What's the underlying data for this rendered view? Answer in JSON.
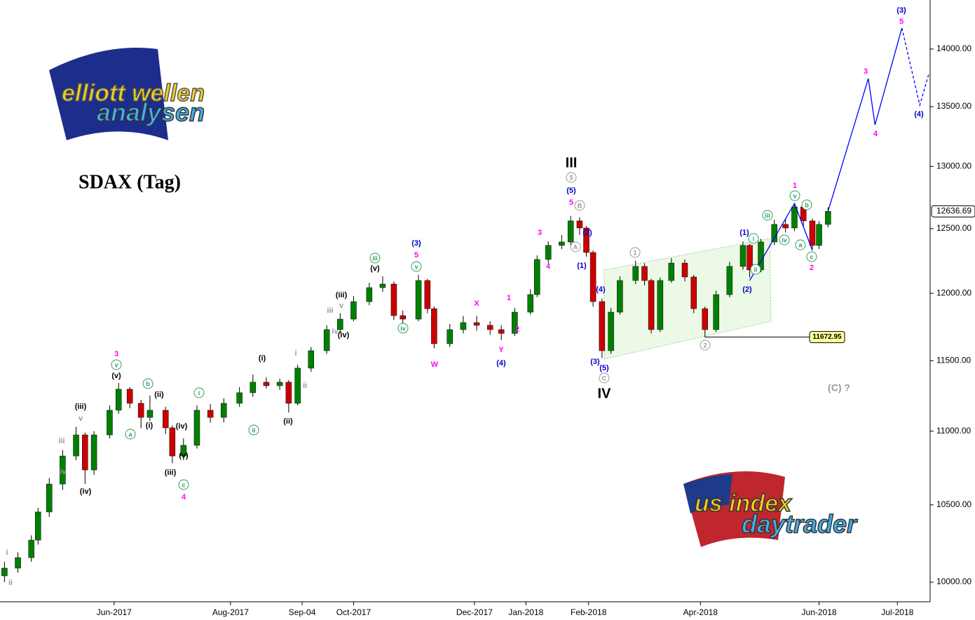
{
  "chart_data": {
    "type": "candlestick",
    "title": "SDAX (Tag)",
    "log_scale": true,
    "up_color": "#008000",
    "down_color": "#cc0000",
    "xlim": [
      0,
      415
    ],
    "ylim": [
      9877,
      14440
    ],
    "xticks": [
      {
        "value": 51,
        "label": "Jun-2017"
      },
      {
        "value": 103,
        "label": "Aug-2017"
      },
      {
        "value": 135,
        "label": "Sep-04"
      },
      {
        "value": 158,
        "label": "Oct-2017"
      },
      {
        "value": 212,
        "label": "Dec-2017"
      },
      {
        "value": 235,
        "label": "Jan-2018"
      },
      {
        "value": 263,
        "label": "Feb-2018"
      },
      {
        "value": 313,
        "label": "Apr-2018"
      },
      {
        "value": 366,
        "label": "Jun-2018"
      },
      {
        "value": 401,
        "label": "Jul-2018"
      }
    ],
    "yticks": [
      {
        "value": 10000,
        "label": "10000.00"
      },
      {
        "value": 10500,
        "label": "10500.00"
      },
      {
        "value": 11000,
        "label": "11000.00"
      },
      {
        "value": 11500,
        "label": "11500.00"
      },
      {
        "value": 12000,
        "label": "12000.00"
      },
      {
        "value": 12500,
        "label": "12500.00"
      },
      {
        "value": 13000,
        "label": "13000.00"
      },
      {
        "value": 13500,
        "label": "13500.00"
      },
      {
        "value": 14000,
        "label": "14000.00"
      }
    ],
    "x": [
      2,
      8,
      14,
      17,
      22,
      28,
      34,
      38,
      42,
      49,
      53,
      58,
      63,
      67,
      74,
      77,
      82,
      88,
      94,
      100,
      107,
      113,
      119,
      125,
      129,
      133,
      139,
      146,
      152,
      158,
      165,
      171,
      176,
      180,
      187,
      191,
      194,
      201,
      207,
      213,
      219,
      224,
      230,
      237,
      240,
      245,
      251,
      255,
      259,
      262,
      265,
      269,
      273,
      277,
      284,
      288,
      291,
      295,
      300,
      306,
      310,
      315,
      320,
      326,
      332,
      335,
      340,
      346,
      351,
      355,
      359,
      363,
      366,
      370
    ],
    "open": [
      10040,
      10089,
      10156,
      10269,
      10453,
      10639,
      10829,
      10974,
      10734,
      10974,
      11146,
      11295,
      11195,
      11096,
      11146,
      11023,
      10829,
      10902,
      11146,
      11096,
      11195,
      11270,
      11345,
      11320,
      11345,
      11195,
      11446,
      11573,
      11728,
      11806,
      11937,
      12043,
      12070,
      11832,
      11806,
      12097,
      11884,
      11624,
      11728,
      11780,
      11760,
      11728,
      11700,
      11858,
      11990,
      12259,
      12368,
      12395,
      12561,
      12505,
      12313,
      11937,
      11573,
      11858,
      12097,
      12205,
      12097,
      11728,
      12097,
      12231,
      12124,
      11884,
      11728,
      11990,
      12205,
      12368,
      12178,
      12395,
      12533,
      12505,
      12672,
      12561,
      12368,
      12533
    ],
    "high": [
      10130,
      10190,
      10300,
      10480,
      10680,
      10870,
      11030,
      10990,
      11000,
      11180,
      11340,
      11310,
      11220,
      11250,
      11170,
      11040,
      10950,
      11180,
      11190,
      11230,
      11310,
      11400,
      11380,
      11370,
      11360,
      11470,
      11600,
      11760,
      11850,
      11980,
      12080,
      12130,
      12090,
      11870,
      12140,
      12110,
      11900,
      11770,
      11830,
      11830,
      11790,
      11760,
      11890,
      12030,
      12290,
      12400,
      12450,
      12600,
      12590,
      12520,
      12330,
      11960,
      11890,
      12130,
      12250,
      12230,
      12110,
      12120,
      12270,
      12260,
      12140,
      11900,
      12020,
      12240,
      12400,
      12380,
      12420,
      12570,
      12580,
      12700,
      12690,
      12580,
      12560,
      12670
    ],
    "low": [
      10000,
      10060,
      10130,
      10240,
      10420,
      10600,
      10800,
      10640,
      10700,
      10950,
      11120,
      11160,
      11020,
      11070,
      10980,
      10780,
      10800,
      10880,
      11060,
      11060,
      11170,
      11240,
      11300,
      11290,
      11130,
      11180,
      11420,
      11550,
      11700,
      11790,
      11910,
      12010,
      11800,
      11770,
      11790,
      11850,
      11590,
      11600,
      11700,
      11720,
      11690,
      11650,
      11680,
      11840,
      11970,
      12230,
      12340,
      12370,
      12450,
      12280,
      11900,
      11520,
      11550,
      11840,
      12070,
      12060,
      11700,
      11710,
      12080,
      12090,
      11850,
      11672.95,
      11710,
      11970,
      12180,
      12120,
      12160,
      12370,
      12470,
      12480,
      12520,
      12330,
      12340,
      12510
    ],
    "close": [
      10089,
      10156,
      10269,
      10453,
      10639,
      10829,
      10974,
      10734,
      10974,
      11146,
      11295,
      11195,
      11096,
      11146,
      11023,
      10829,
      10902,
      11146,
      11096,
      11195,
      11270,
      11345,
      11320,
      11345,
      11195,
      11446,
      11573,
      11728,
      11806,
      11937,
      12043,
      12070,
      11832,
      11806,
      12097,
      11884,
      11624,
      11728,
      11780,
      11760,
      11728,
      11700,
      11858,
      11990,
      12259,
      12368,
      12395,
      12561,
      12505,
      12313,
      11937,
      11573,
      11858,
      12097,
      12205,
      12097,
      11728,
      12097,
      12231,
      12124,
      11884,
      11728,
      11990,
      12205,
      12368,
      12178,
      12395,
      12533,
      12505,
      12672,
      12561,
      12368,
      12533,
      12636.69
    ],
    "lines": [
      {
        "color": "#0000ff",
        "dashed": false,
        "x": [
          335,
          355,
          363
        ],
        "values": [
          12097,
          12700,
          12330
        ]
      },
      {
        "color": "#0000ff",
        "dashed": false,
        "x": [
          370,
          388,
          391,
          403
        ],
        "values": [
          12636.69,
          13742,
          13346,
          14187
        ]
      },
      {
        "color": "#0000ff",
        "dashed": true,
        "x": [
          403,
          411,
          415
        ],
        "values": [
          14187,
          13513,
          13780
        ]
      }
    ],
    "annotations": [
      {
        "text": "ii",
        "color": "#999999",
        "circled": false
      },
      {
        "text": "i",
        "color": "#999999",
        "circled": false
      },
      {
        "text": "iii",
        "color": "#999999",
        "circled": false
      },
      {
        "text": "iv",
        "color": "#999999",
        "circled": false
      },
      {
        "text": "v",
        "color": "#999999",
        "circled": false
      },
      {
        "text": "(iii)",
        "color": "#000000",
        "circled": false
      },
      {
        "text": "(iv)",
        "color": "#000000",
        "circled": false
      },
      {
        "text": "3",
        "color": "#ff00ff",
        "circled": false
      },
      {
        "text": "v",
        "color": "#2e9e5e",
        "circled": true
      },
      {
        "text": "(v)",
        "color": "#000000",
        "circled": false
      },
      {
        "text": "a",
        "color": "#2e9e5e",
        "circled": true
      },
      {
        "text": "b",
        "color": "#2e9e5e",
        "circled": true
      },
      {
        "text": "(i)",
        "color": "#000000",
        "circled": false
      },
      {
        "text": "(ii)",
        "color": "#000000",
        "circled": false
      },
      {
        "text": "(iii)",
        "color": "#000000",
        "circled": false
      },
      {
        "text": "(iv)",
        "color": "#000000",
        "circled": false
      },
      {
        "text": "(v)",
        "color": "#000000",
        "circled": false
      },
      {
        "text": "c",
        "color": "#2e9e5e",
        "circled": true
      },
      {
        "text": "4",
        "color": "#ff00ff",
        "circled": false
      },
      {
        "text": "i",
        "color": "#2e9e5e",
        "circled": true
      },
      {
        "text": "ii",
        "color": "#2e9e5e",
        "circled": true
      },
      {
        "text": "(i)",
        "color": "#000000",
        "circled": false
      },
      {
        "text": "(ii)",
        "color": "#000000",
        "circled": false
      },
      {
        "text": "i",
        "color": "#999999",
        "circled": false
      },
      {
        "text": "ii",
        "color": "#999999",
        "circled": false
      },
      {
        "text": "iii",
        "color": "#999999",
        "circled": false
      },
      {
        "text": "v",
        "color": "#999999",
        "circled": false
      },
      {
        "text": "iv",
        "color": "#999999",
        "circled": false
      },
      {
        "text": "(iii)",
        "color": "#000000",
        "circled": false
      },
      {
        "text": "(iv)",
        "color": "#000000",
        "circled": false
      },
      {
        "text": "iii",
        "color": "#2e9e5e",
        "circled": true
      },
      {
        "text": "(v)",
        "color": "#000000",
        "circled": false
      },
      {
        "text": "iv",
        "color": "#2e9e5e",
        "circled": true
      },
      {
        "text": "(3)",
        "color": "#0000cc",
        "circled": false
      },
      {
        "text": "5",
        "color": "#ff00ff",
        "circled": false
      },
      {
        "text": "v",
        "color": "#2e9e5e",
        "circled": true
      },
      {
        "text": "W",
        "color": "#ff00ff",
        "circled": false
      },
      {
        "text": "X",
        "color": "#ff00ff",
        "circled": false
      },
      {
        "text": "Y",
        "color": "#ff00ff",
        "circled": false
      },
      {
        "text": "(4)",
        "color": "#0000cc",
        "circled": false
      },
      {
        "text": "1",
        "color": "#ff00ff",
        "circled": false
      },
      {
        "text": "2",
        "color": "#ff00ff",
        "circled": false
      },
      {
        "text": "3",
        "color": "#ff00ff",
        "circled": false
      },
      {
        "text": "4",
        "color": "#ff00ff",
        "circled": false
      },
      {
        "text": "III",
        "color": "#000000",
        "circled": false
      },
      {
        "text": "5",
        "color": "#999999",
        "circled": true
      },
      {
        "text": "(5)",
        "color": "#0000cc",
        "circled": false
      },
      {
        "text": "5",
        "color": "#ff00ff",
        "circled": false
      },
      {
        "text": "B",
        "color": "#999999",
        "circled": true
      },
      {
        "text": "A",
        "color": "#999999",
        "circled": true
      },
      {
        "text": "(2)",
        "color": "#0000cc",
        "circled": false
      },
      {
        "text": "(1)",
        "color": "#0000cc",
        "circled": false
      },
      {
        "text": "(4)",
        "color": "#0000cc",
        "circled": false
      },
      {
        "text": "(3)",
        "color": "#0000cc",
        "circled": false
      },
      {
        "text": "(5)",
        "color": "#0000cc",
        "circled": false
      },
      {
        "text": "C",
        "color": "#999999",
        "circled": true
      },
      {
        "text": "IV",
        "color": "#000000",
        "circled": false
      },
      {
        "text": "1",
        "color": "#999999",
        "circled": true
      },
      {
        "text": "2",
        "color": "#999999",
        "circled": true
      },
      {
        "text": "(1)",
        "color": "#0000cc",
        "circled": false
      },
      {
        "text": "(2)",
        "color": "#0000cc",
        "circled": false
      },
      {
        "text": "i",
        "color": "#2e9e5e",
        "circled": true
      },
      {
        "text": "ii",
        "color": "#2e9e5e",
        "circled": true
      },
      {
        "text": "iii",
        "color": "#2e9e5e",
        "circled": true
      },
      {
        "text": "iv",
        "color": "#2e9e5e",
        "circled": true
      },
      {
        "text": "1",
        "color": "#ff00ff",
        "circled": false
      },
      {
        "text": "v",
        "color": "#2e9e5e",
        "circled": true
      },
      {
        "text": "b",
        "color": "#2e9e5e",
        "circled": true
      },
      {
        "text": "a",
        "color": "#2e9e5e",
        "circled": true
      },
      {
        "text": "c",
        "color": "#2e9e5e",
        "circled": true
      },
      {
        "text": "2",
        "color": "#ff00ff",
        "circled": false
      },
      {
        "text": "(C) ?",
        "color": "#999999",
        "circled": false
      },
      {
        "text": "3",
        "color": "#ff00ff",
        "circled": false
      },
      {
        "text": "4",
        "color": "#ff00ff",
        "circled": false
      },
      {
        "text": "(3)",
        "color": "#0000cc",
        "circled": false
      },
      {
        "text": "5",
        "color": "#ff00ff",
        "circled": false
      },
      {
        "text": "(4)",
        "color": "#0000cc",
        "circled": false
      }
    ],
    "logos": [
      "elliott wellen",
      "analysen",
      "us index",
      "daytrader"
    ]
  }
}
